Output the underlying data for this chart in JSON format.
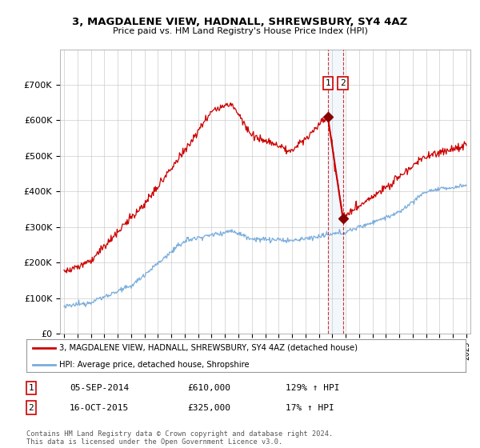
{
  "title": "3, MAGDALENE VIEW, HADNALL, SHREWSBURY, SY4 4AZ",
  "subtitle": "Price paid vs. HM Land Registry's House Price Index (HPI)",
  "hpi_label": "HPI: Average price, detached house, Shropshire",
  "property_label": "3, MAGDALENE VIEW, HADNALL, SHREWSBURY, SY4 4AZ (detached house)",
  "sale1_date": "05-SEP-2014",
  "sale1_price": 610000,
  "sale1_hpi": "129% ↑ HPI",
  "sale2_date": "16-OCT-2015",
  "sale2_price": 325000,
  "sale2_hpi": "17% ↑ HPI",
  "copyright": "Contains HM Land Registry data © Crown copyright and database right 2024.\nThis data is licensed under the Open Government Licence v3.0.",
  "ylim": [
    0,
    800000
  ],
  "yticks": [
    0,
    100000,
    200000,
    300000,
    400000,
    500000,
    600000,
    700000
  ],
  "ytick_labels": [
    "£0",
    "£100K",
    "£200K",
    "£300K",
    "£400K",
    "£500K",
    "£600K",
    "£700K"
  ],
  "hpi_color": "#7aaddb",
  "property_color": "#cc0000",
  "background_color": "#ffffff",
  "grid_color": "#cccccc",
  "sale1_x": 2014.67,
  "sale2_x": 2015.79,
  "sale1_y": 610000,
  "sale2_y": 325000,
  "xmin": 1995,
  "xmax": 2025
}
